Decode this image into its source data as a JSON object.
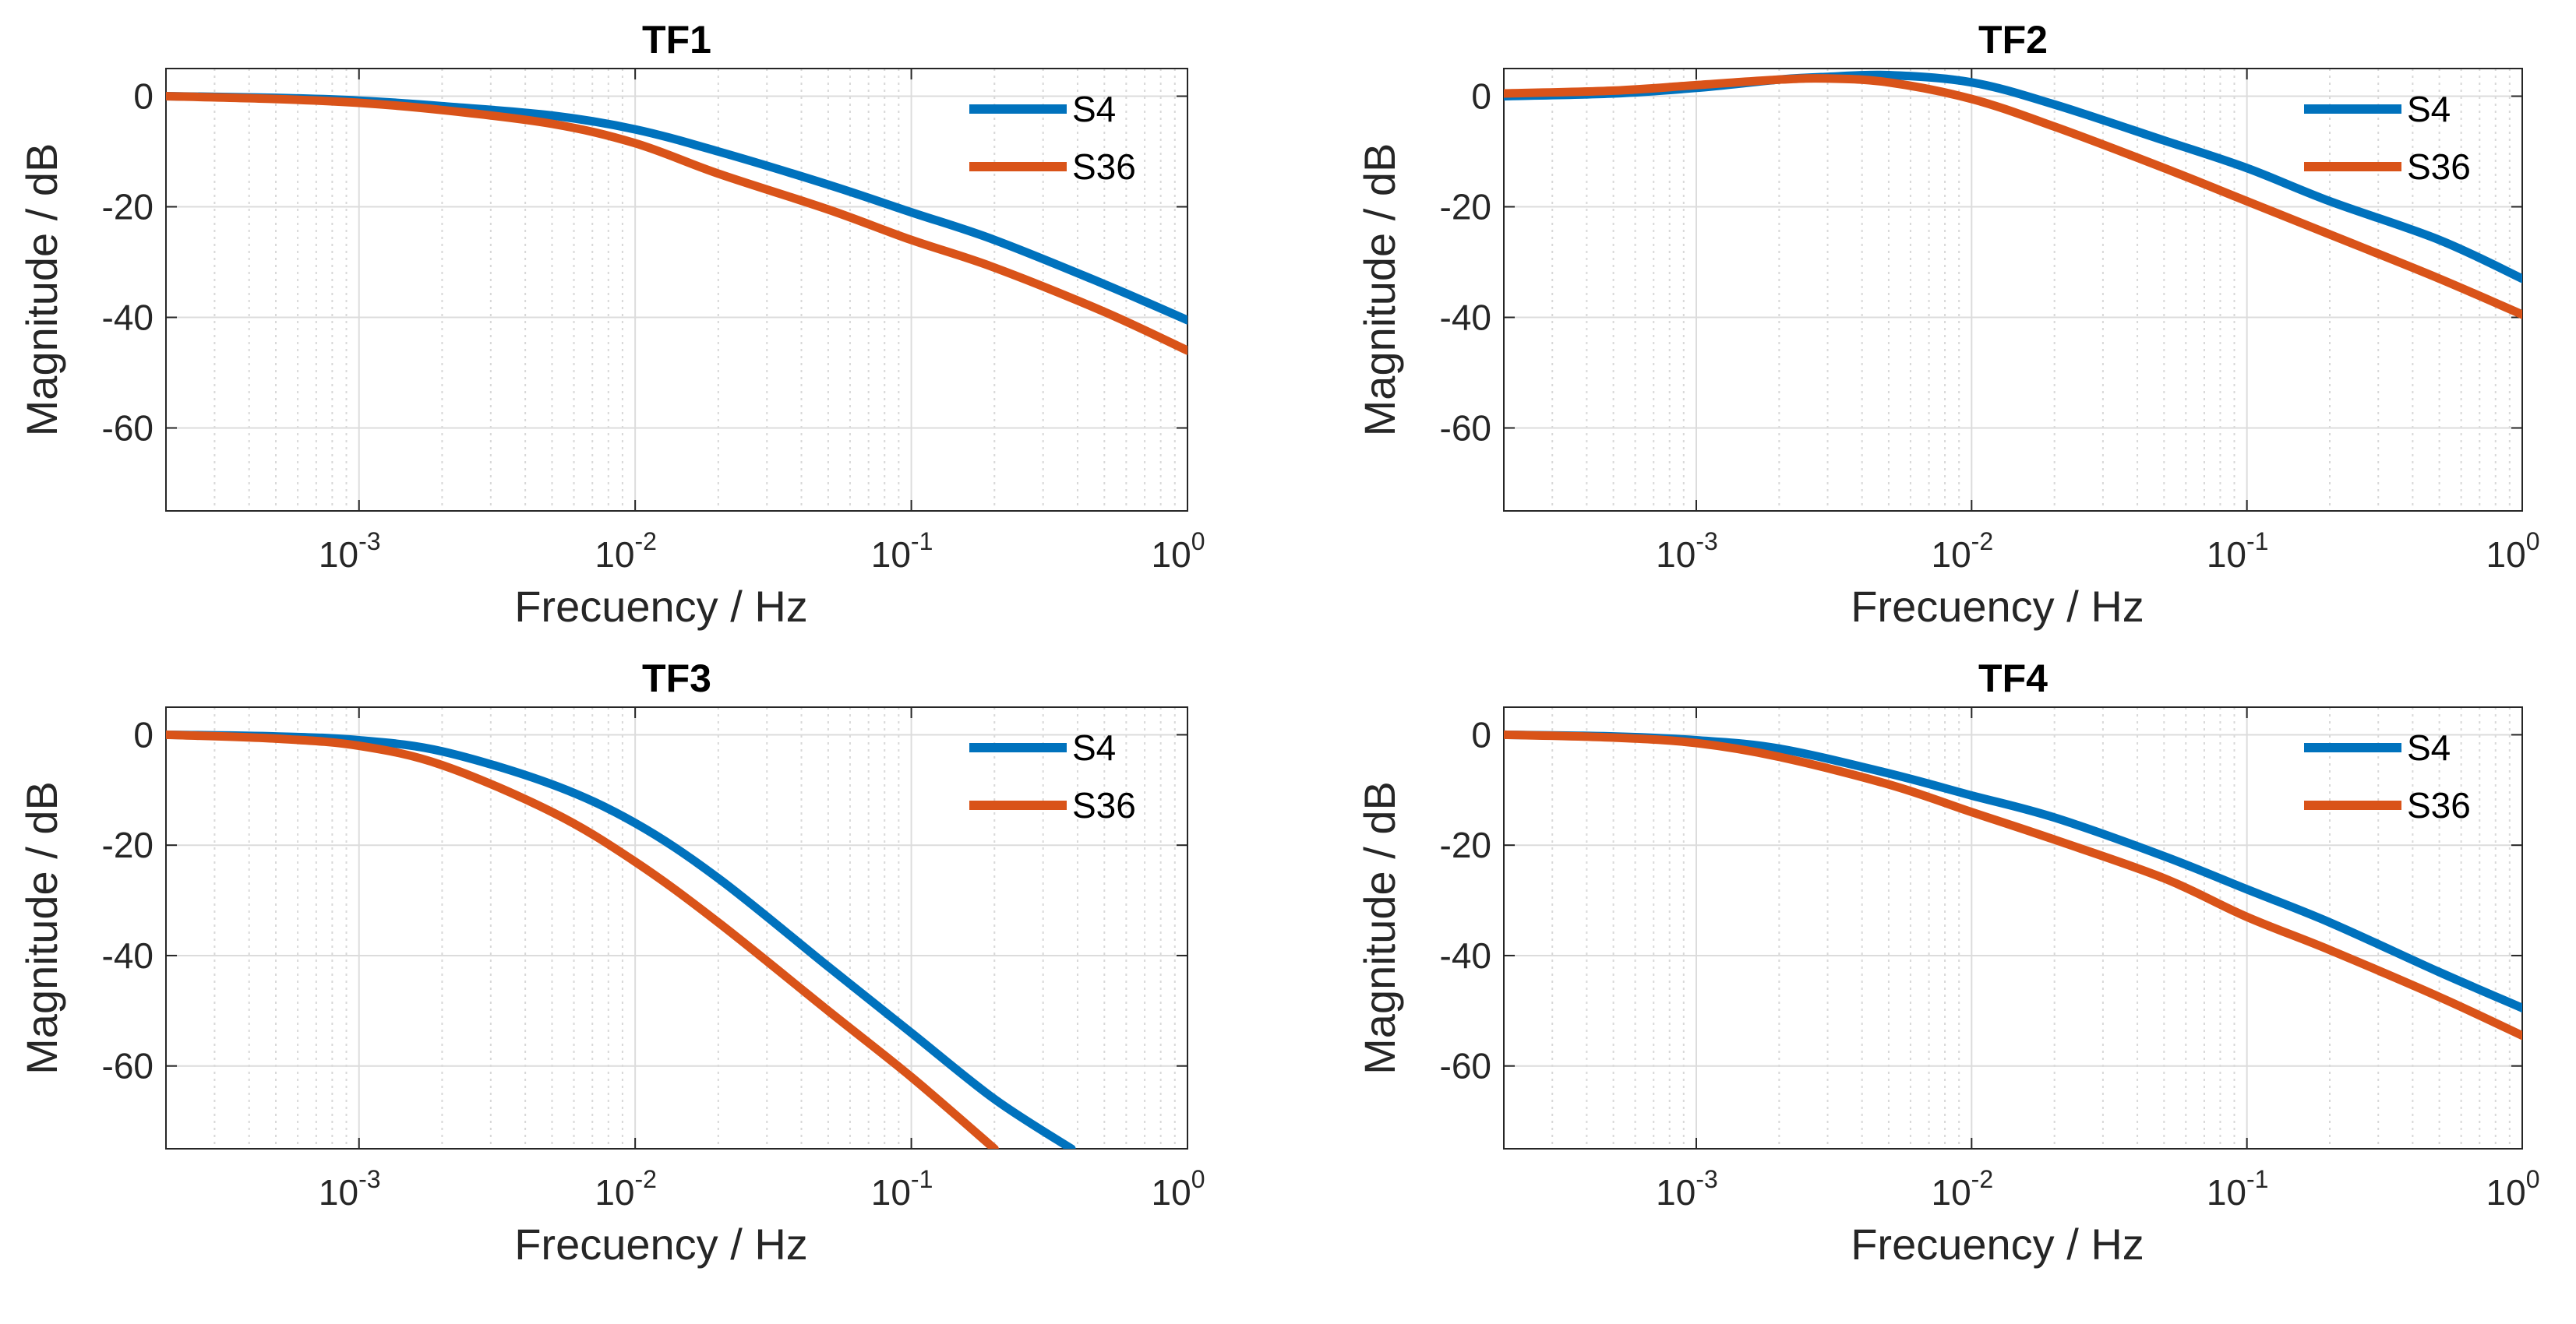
{
  "chart_data": [
    {
      "type": "line",
      "title": "TF1",
      "xlabel": "Frecuency / Hz",
      "ylabel": "Magnitude / dB",
      "xscale": "log",
      "xlim": [
        0.0002,
        1
      ],
      "ylim": [
        -75,
        5
      ],
      "xticks": [
        {
          "base": "10",
          "exp": "-3"
        },
        {
          "base": "10",
          "exp": "-2"
        },
        {
          "base": "10",
          "exp": "-1"
        },
        {
          "base": "10",
          "exp": "0"
        }
      ],
      "yticks": [
        "0",
        "-20",
        "-40",
        "-60"
      ],
      "grid": true,
      "legend_position": "top-right",
      "series": [
        {
          "name": "S4",
          "color": "#0072BD",
          "x": [
            0.0002,
            0.0005,
            0.001,
            0.002,
            0.005,
            0.01,
            0.02,
            0.05,
            0.1,
            0.2,
            0.5,
            1
          ],
          "y": [
            0,
            -0.3,
            -0.8,
            -1.8,
            -3.5,
            -6,
            -10,
            -16,
            -21,
            -26,
            -34,
            -40.5
          ]
        },
        {
          "name": "S36",
          "color": "#D95319",
          "x": [
            0.0002,
            0.0005,
            0.001,
            0.002,
            0.005,
            0.01,
            0.02,
            0.05,
            0.1,
            0.2,
            0.5,
            1
          ],
          "y": [
            0,
            -0.5,
            -1.2,
            -2.5,
            -5,
            -8.5,
            -14,
            -20.5,
            -26,
            -31,
            -39,
            -46
          ]
        }
      ]
    },
    {
      "type": "line",
      "title": "TF2",
      "xlabel": "Frecuency / Hz",
      "ylabel": "Magnitude / dB",
      "xscale": "log",
      "xlim": [
        0.0002,
        1
      ],
      "ylim": [
        -75,
        5
      ],
      "xticks": [
        {
          "base": "10",
          "exp": "-3"
        },
        {
          "base": "10",
          "exp": "-2"
        },
        {
          "base": "10",
          "exp": "-1"
        },
        {
          "base": "10",
          "exp": "0"
        }
      ],
      "yticks": [
        "0",
        "-20",
        "-40",
        "-60"
      ],
      "grid": true,
      "legend_position": "top-right",
      "series": [
        {
          "name": "S4",
          "color": "#0072BD",
          "x": [
            0.0002,
            0.0005,
            0.001,
            0.002,
            0.003,
            0.005,
            0.01,
            0.02,
            0.05,
            0.1,
            0.2,
            0.5,
            1
          ],
          "y": [
            0,
            0.5,
            1.5,
            3,
            3.5,
            3.8,
            2.5,
            -1.5,
            -8,
            -13,
            -19,
            -26,
            -33
          ]
        },
        {
          "name": "S36",
          "color": "#D95319",
          "x": [
            0.0002,
            0.0005,
            0.001,
            0.002,
            0.003,
            0.005,
            0.01,
            0.02,
            0.05,
            0.1,
            0.2,
            0.5,
            1
          ],
          "y": [
            0.5,
            1,
            2,
            3,
            3.2,
            2.5,
            -0.5,
            -5.5,
            -13,
            -19,
            -25,
            -33,
            -39.5
          ]
        }
      ]
    },
    {
      "type": "line",
      "title": "TF3",
      "xlabel": "Frecuency / Hz",
      "ylabel": "Magnitude / dB",
      "xscale": "log",
      "xlim": [
        0.0002,
        1
      ],
      "ylim": [
        -75,
        5
      ],
      "xticks": [
        {
          "base": "10",
          "exp": "-3"
        },
        {
          "base": "10",
          "exp": "-2"
        },
        {
          "base": "10",
          "exp": "-1"
        },
        {
          "base": "10",
          "exp": "0"
        }
      ],
      "yticks": [
        "0",
        "-20",
        "-40",
        "-60"
      ],
      "grid": true,
      "legend_position": "top-right",
      "series": [
        {
          "name": "S4",
          "color": "#0072BD",
          "x": [
            0.0002,
            0.0005,
            0.001,
            0.002,
            0.005,
            0.01,
            0.02,
            0.05,
            0.1,
            0.2,
            0.38
          ],
          "y": [
            0,
            -0.3,
            -1,
            -3,
            -9,
            -16,
            -26,
            -42,
            -54,
            -66,
            -75
          ]
        },
        {
          "name": "S36",
          "color": "#D95319",
          "x": [
            0.0002,
            0.0005,
            0.001,
            0.002,
            0.005,
            0.01,
            0.02,
            0.05,
            0.1,
            0.2
          ],
          "y": [
            0,
            -0.7,
            -2,
            -5.5,
            -14,
            -23,
            -34,
            -50,
            -62,
            -75
          ]
        }
      ]
    },
    {
      "type": "line",
      "title": "TF4",
      "xlabel": "Frecuency / Hz",
      "ylabel": "Magnitude / dB",
      "xscale": "log",
      "xlim": [
        0.0002,
        1
      ],
      "ylim": [
        -75,
        5
      ],
      "xticks": [
        {
          "base": "10",
          "exp": "-3"
        },
        {
          "base": "10",
          "exp": "-2"
        },
        {
          "base": "10",
          "exp": "-1"
        },
        {
          "base": "10",
          "exp": "0"
        }
      ],
      "yticks": [
        "0",
        "-20",
        "-40",
        "-60"
      ],
      "grid": true,
      "legend_position": "top-right",
      "series": [
        {
          "name": "S4",
          "color": "#0072BD",
          "x": [
            0.0002,
            0.0005,
            0.001,
            0.002,
            0.005,
            0.01,
            0.02,
            0.05,
            0.1,
            0.2,
            0.5,
            1
          ],
          "y": [
            0,
            -0.3,
            -1,
            -2.5,
            -7,
            -11,
            -15,
            -22,
            -28,
            -34,
            -43,
            -49.5
          ]
        },
        {
          "name": "S36",
          "color": "#D95319",
          "x": [
            0.0002,
            0.0005,
            0.001,
            0.002,
            0.005,
            0.01,
            0.02,
            0.05,
            0.1,
            0.2,
            0.5,
            1
          ],
          "y": [
            0,
            -0.5,
            -1.5,
            -4,
            -9,
            -14,
            -19,
            -26,
            -33,
            -39,
            -47.5,
            -54.5
          ]
        }
      ]
    }
  ]
}
